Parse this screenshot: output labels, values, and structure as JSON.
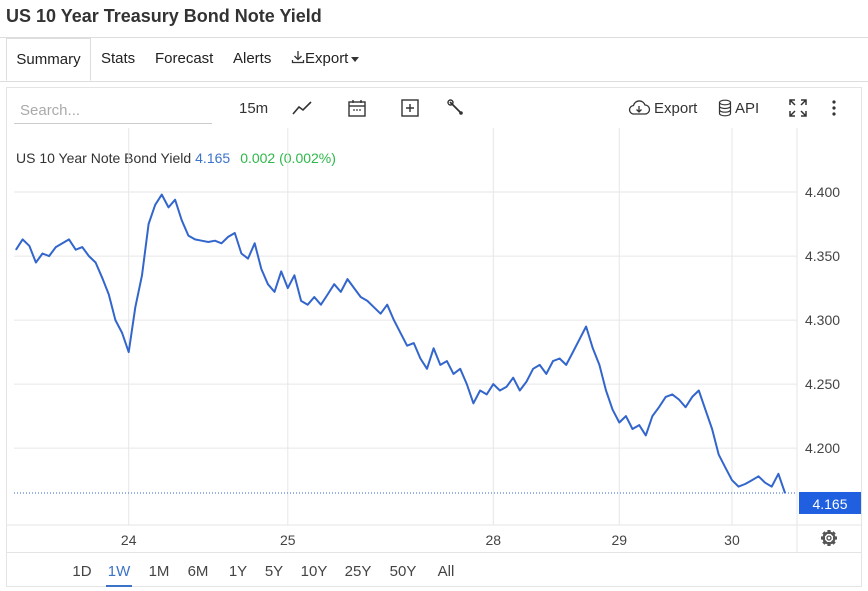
{
  "page": {
    "title": "US 10 Year Treasury Bond Note Yield"
  },
  "tabs": [
    {
      "label": "Summary",
      "active": true
    },
    {
      "label": "Stats"
    },
    {
      "label": "Forecast"
    },
    {
      "label": "Alerts"
    },
    {
      "label": "Export"
    }
  ],
  "toolbar": {
    "search_placeholder": "Search...",
    "interval": "15m",
    "export_label": "Export",
    "api_label": "API",
    "icons": [
      "line-chart-icon",
      "calendar-icon",
      "add-indicator-icon",
      "wrench-icon",
      "cloud-download-icon",
      "database-icon",
      "fullscreen-icon",
      "more-vertical-icon"
    ]
  },
  "legend": {
    "name": "US 10 Year Note Bond Yield",
    "value": "4.165",
    "change": "0.002 (0.002%)"
  },
  "colors": {
    "line": "#3366cc",
    "value": "#3b73c9",
    "change": "#2eb84a",
    "last_price_bg": "#1f5fe0"
  },
  "ranges": [
    "1D",
    "1W",
    "1M",
    "6M",
    "1Y",
    "5Y",
    "10Y",
    "25Y",
    "50Y",
    "All"
  ],
  "active_range": "1W",
  "chart_data": {
    "type": "line",
    "series": [
      {
        "name": "US 10 Year Note Bond Yield",
        "values": [
          4.355,
          4.363,
          4.358,
          4.345,
          4.352,
          4.35,
          4.357,
          4.36,
          4.363,
          4.355,
          4.357,
          4.35,
          4.345,
          4.333,
          4.32,
          4.3,
          4.29,
          4.275,
          4.31,
          4.335,
          4.375,
          4.39,
          4.398,
          4.388,
          4.394,
          4.378,
          4.366,
          4.363,
          4.362,
          4.361,
          4.362,
          4.36,
          4.365,
          4.368,
          4.352,
          4.348,
          4.36,
          4.34,
          4.328,
          4.322,
          4.338,
          4.325,
          4.335,
          4.315,
          4.312,
          4.318,
          4.312,
          4.32,
          4.328,
          4.322,
          4.332,
          4.325,
          4.318,
          4.315,
          4.31,
          4.305,
          4.312,
          4.3,
          4.29,
          4.28,
          4.282,
          4.27,
          4.262,
          4.278,
          4.265,
          4.268,
          4.258,
          4.262,
          4.25,
          4.235,
          4.245,
          4.242,
          4.25,
          4.245,
          4.248,
          4.255,
          4.245,
          4.252,
          4.262,
          4.265,
          4.258,
          4.268,
          4.27,
          4.265,
          4.275,
          4.285,
          4.295,
          4.278,
          4.265,
          4.245,
          4.23,
          4.22,
          4.225,
          4.215,
          4.218,
          4.21,
          4.225,
          4.232,
          4.24,
          4.242,
          4.238,
          4.232,
          4.24,
          4.245,
          4.23,
          4.215,
          4.195,
          4.185,
          4.175,
          4.17,
          4.172,
          4.175,
          4.178,
          4.173,
          4.17,
          4.18,
          4.165
        ]
      }
    ],
    "x_tick_labels": [
      "24",
      "25",
      "28",
      "29",
      "30"
    ],
    "x_tick_index": [
      17,
      41,
      72,
      91,
      108
    ],
    "y_ticks": [
      4.2,
      4.25,
      4.3,
      4.35,
      4.4
    ],
    "y_tick_labels": [
      "4.200",
      "4.250",
      "4.300",
      "4.350",
      "4.400"
    ],
    "ylim": [
      4.14,
      4.45
    ],
    "last_value": 4.165,
    "last_value_label": "4.165",
    "grid": true,
    "title": "",
    "xlabel": "",
    "ylabel": ""
  }
}
